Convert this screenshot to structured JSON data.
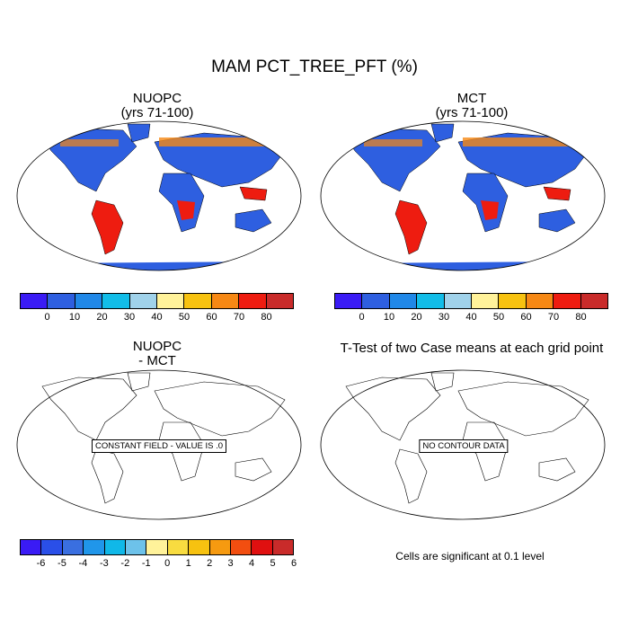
{
  "title": "MAM PCT_TREE_PFT (%)",
  "panels": {
    "top_left": {
      "title": "NUOPC",
      "subtitle": "(yrs 71-100)"
    },
    "top_right": {
      "title": "MCT",
      "subtitle": "(yrs 71-100)"
    },
    "bottom_left": {
      "title": "NUOPC",
      "subtitle": "- MCT",
      "message": "CONSTANT FIELD - VALUE IS .0"
    },
    "bottom_right": {
      "title": "T-Test of two Case means at each grid point",
      "message": "NO CONTOUR DATA",
      "note": "Cells are significant at 0.1 level"
    }
  },
  "colorbar_top": {
    "colors": [
      "#3a1bf5",
      "#2e5fe0",
      "#2088e8",
      "#12bde8",
      "#a0d2ea",
      "#fff29a",
      "#f7c210",
      "#f68814",
      "#ee1c10",
      "#c92b2a"
    ],
    "labels": [
      "0",
      "10",
      "20",
      "30",
      "40",
      "50",
      "60",
      "70",
      "80"
    ]
  },
  "colorbar_bottom": {
    "colors": [
      "#3a1bf5",
      "#2a4fe8",
      "#3a6fe0",
      "#2096ea",
      "#10b8e8",
      "#6dc2ea",
      "#fff29a",
      "#f8dc40",
      "#f7c210",
      "#f69a10",
      "#f24e10",
      "#e01010",
      "#c92b2a"
    ],
    "labels": [
      "-6",
      "-5",
      "-4",
      "-3",
      "-2",
      "-1",
      "0",
      "1",
      "2",
      "3",
      "4",
      "5",
      "6"
    ]
  },
  "icons": {
    "map": "robinson-world-map"
  }
}
